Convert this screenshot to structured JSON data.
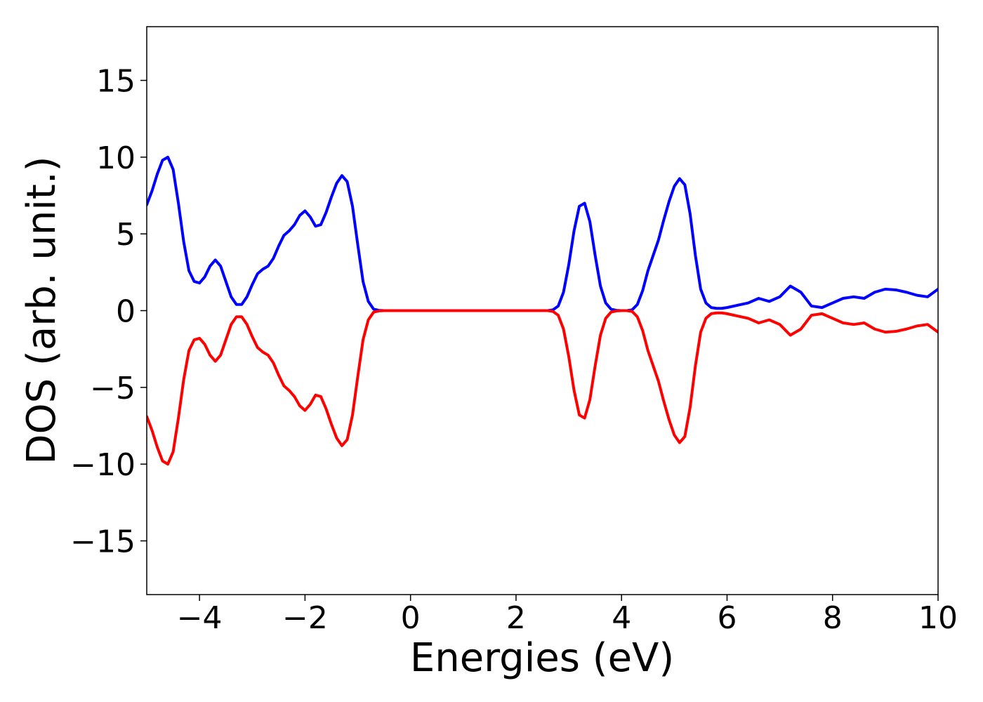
{
  "chart_data": {
    "type": "line",
    "title": "",
    "xlabel": "Energies (eV)",
    "ylabel": "DOS (arb. unit.)",
    "xlim": [
      -5,
      10
    ],
    "ylim": [
      -18.5,
      18.5
    ],
    "xticks": [
      -4,
      -2,
      0,
      2,
      4,
      6,
      8,
      10
    ],
    "xtick_labels": [
      "−4",
      "−2",
      "0",
      "2",
      "4",
      "6",
      "8",
      "10"
    ],
    "yticks": [
      15,
      10,
      5,
      0,
      -5,
      -10,
      -15
    ],
    "ytick_labels": [
      "15",
      "10",
      "5",
      "0",
      "−5",
      "−10",
      "−15"
    ],
    "grid": false,
    "legend": "none",
    "series": [
      {
        "color": "#0000ff",
        "x": [
          -5.0,
          -4.9,
          -4.8,
          -4.7,
          -4.6,
          -4.5,
          -4.4,
          -4.3,
          -4.2,
          -4.1,
          -4.0,
          -3.9,
          -3.8,
          -3.7,
          -3.6,
          -3.5,
          -3.4,
          -3.3,
          -3.2,
          -3.1,
          -3.0,
          -2.9,
          -2.8,
          -2.7,
          -2.6,
          -2.5,
          -2.4,
          -2.3,
          -2.2,
          -2.1,
          -2.0,
          -1.9,
          -1.8,
          -1.7,
          -1.6,
          -1.5,
          -1.4,
          -1.3,
          -1.2,
          -1.1,
          -1.0,
          -0.9,
          -0.8,
          -0.7,
          -0.6,
          -0.5,
          -0.4,
          0.0,
          1.0,
          2.0,
          2.5,
          2.6,
          2.7,
          2.8,
          2.9,
          3.0,
          3.1,
          3.2,
          3.3,
          3.4,
          3.5,
          3.6,
          3.7,
          3.8,
          3.9,
          4.0,
          4.1,
          4.2,
          4.3,
          4.4,
          4.5,
          4.6,
          4.7,
          4.8,
          4.9,
          5.0,
          5.1,
          5.2,
          5.3,
          5.4,
          5.5,
          5.6,
          5.7,
          5.8,
          5.9,
          6.0,
          6.2,
          6.4,
          6.6,
          6.8,
          7.0,
          7.2,
          7.4,
          7.6,
          7.8,
          8.0,
          8.2,
          8.4,
          8.6,
          8.8,
          9.0,
          9.2,
          9.4,
          9.6,
          9.8,
          10.0
        ],
        "y": [
          6.9,
          7.8,
          8.9,
          9.8,
          10.0,
          9.2,
          7.0,
          4.5,
          2.6,
          1.9,
          1.8,
          2.2,
          2.9,
          3.3,
          2.9,
          1.9,
          0.9,
          0.4,
          0.4,
          0.9,
          1.7,
          2.4,
          2.7,
          2.9,
          3.4,
          4.2,
          4.9,
          5.2,
          5.6,
          6.2,
          6.5,
          6.1,
          5.5,
          5.6,
          6.4,
          7.4,
          8.3,
          8.8,
          8.4,
          6.8,
          4.3,
          1.9,
          0.6,
          0.1,
          0.02,
          0.0,
          0.0,
          0.0,
          0.0,
          0.0,
          0.0,
          0.0,
          0.05,
          0.3,
          1.2,
          3.0,
          5.2,
          6.8,
          7.0,
          5.8,
          3.6,
          1.6,
          0.5,
          0.1,
          0.02,
          0.0,
          0.0,
          0.05,
          0.4,
          1.3,
          2.6,
          3.6,
          4.6,
          5.9,
          7.1,
          8.1,
          8.6,
          8.2,
          6.3,
          3.6,
          1.4,
          0.5,
          0.2,
          0.15,
          0.15,
          0.2,
          0.35,
          0.5,
          0.8,
          0.6,
          0.9,
          1.6,
          1.2,
          0.3,
          0.2,
          0.5,
          0.8,
          0.9,
          0.8,
          1.2,
          1.4,
          1.35,
          1.2,
          1.0,
          0.9,
          1.4
        ],
        "name": ""
      },
      {
        "color": "#ff0000",
        "x": [
          -5.0,
          -4.9,
          -4.8,
          -4.7,
          -4.6,
          -4.5,
          -4.4,
          -4.3,
          -4.2,
          -4.1,
          -4.0,
          -3.9,
          -3.8,
          -3.7,
          -3.6,
          -3.5,
          -3.4,
          -3.3,
          -3.2,
          -3.1,
          -3.0,
          -2.9,
          -2.8,
          -2.7,
          -2.6,
          -2.5,
          -2.4,
          -2.3,
          -2.2,
          -2.1,
          -2.0,
          -1.9,
          -1.8,
          -1.7,
          -1.6,
          -1.5,
          -1.4,
          -1.3,
          -1.2,
          -1.1,
          -1.0,
          -0.9,
          -0.8,
          -0.7,
          -0.6,
          -0.5,
          -0.4,
          0.0,
          1.0,
          2.0,
          2.5,
          2.6,
          2.7,
          2.8,
          2.9,
          3.0,
          3.1,
          3.2,
          3.3,
          3.4,
          3.5,
          3.6,
          3.7,
          3.8,
          3.9,
          4.0,
          4.1,
          4.2,
          4.3,
          4.4,
          4.5,
          4.6,
          4.7,
          4.8,
          4.9,
          5.0,
          5.1,
          5.2,
          5.3,
          5.4,
          5.5,
          5.6,
          5.7,
          5.8,
          5.9,
          6.0,
          6.2,
          6.4,
          6.6,
          6.8,
          7.0,
          7.2,
          7.4,
          7.6,
          7.8,
          8.0,
          8.2,
          8.4,
          8.6,
          8.8,
          9.0,
          9.2,
          9.4,
          9.6,
          9.8,
          10.0
        ],
        "y": [
          -6.9,
          -7.8,
          -8.9,
          -9.8,
          -10.0,
          -9.2,
          -7.0,
          -4.5,
          -2.6,
          -1.9,
          -1.8,
          -2.2,
          -2.9,
          -3.3,
          -2.9,
          -1.9,
          -0.9,
          -0.4,
          -0.4,
          -0.9,
          -1.7,
          -2.4,
          -2.7,
          -2.9,
          -3.4,
          -4.2,
          -4.9,
          -5.2,
          -5.6,
          -6.2,
          -6.5,
          -6.1,
          -5.5,
          -5.6,
          -6.4,
          -7.4,
          -8.3,
          -8.8,
          -8.4,
          -6.8,
          -4.3,
          -1.9,
          -0.6,
          -0.1,
          -0.02,
          0.0,
          0.0,
          0.0,
          0.0,
          0.0,
          0.0,
          0.0,
          -0.05,
          -0.3,
          -1.2,
          -3.0,
          -5.2,
          -6.8,
          -7.0,
          -5.8,
          -3.6,
          -1.6,
          -0.5,
          -0.1,
          -0.02,
          0.0,
          0.0,
          -0.05,
          -0.4,
          -1.3,
          -2.6,
          -3.6,
          -4.6,
          -5.9,
          -7.1,
          -8.1,
          -8.6,
          -8.2,
          -6.3,
          -3.6,
          -1.4,
          -0.5,
          -0.2,
          -0.15,
          -0.15,
          -0.2,
          -0.35,
          -0.5,
          -0.8,
          -0.6,
          -0.9,
          -1.6,
          -1.2,
          -0.3,
          -0.2,
          -0.5,
          -0.8,
          -0.9,
          -0.8,
          -1.2,
          -1.4,
          -1.35,
          -1.2,
          -1.0,
          -0.9,
          -1.4
        ],
        "name": ""
      }
    ]
  }
}
